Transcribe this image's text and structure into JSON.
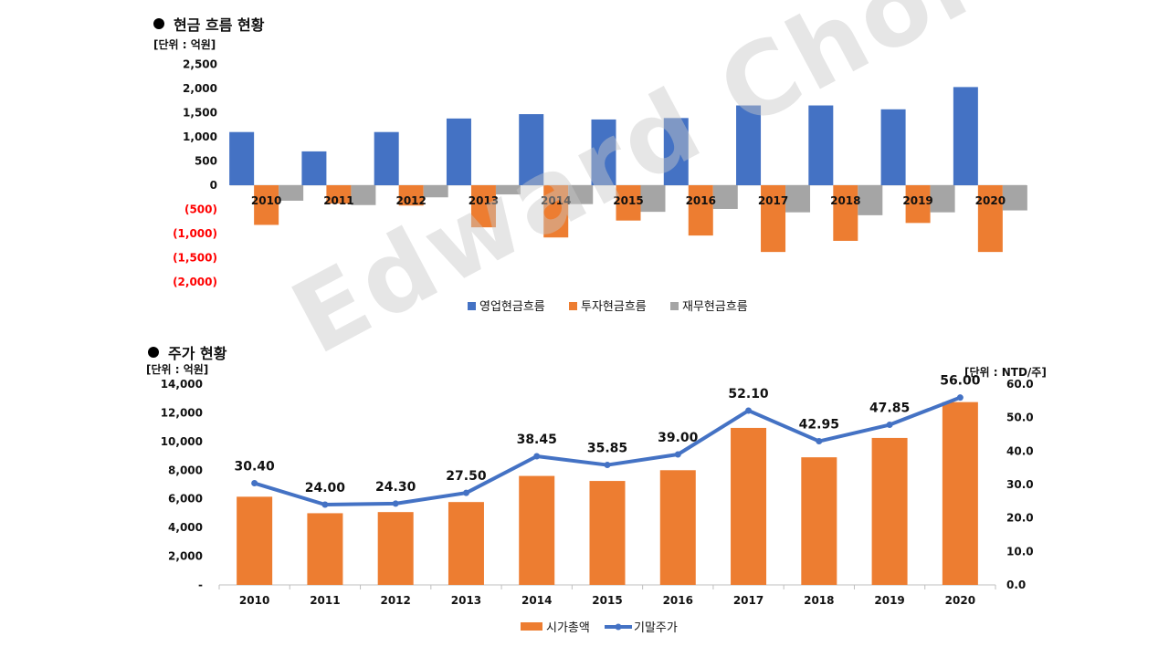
{
  "cashflow": {
    "title": "현금 흐름 현황",
    "unit": "[단위 : 억원]"
  },
  "stock": {
    "title": "주가 현황",
    "unit_left": "[단위 : 억원]",
    "unit_right": "[단위 : NTD/주]"
  },
  "watermark": "Edward Choi",
  "colors": {
    "blue": "#4472C4",
    "orange": "#ED7D31",
    "gray": "#A5A5A5",
    "negative": "#FF0000",
    "line": "#4472C4"
  },
  "chart_data": [
    {
      "type": "bar",
      "title": "현금 흐름 현황",
      "categories": [
        "2010",
        "2011",
        "2012",
        "2013",
        "2014",
        "2015",
        "2016",
        "2017",
        "2018",
        "2019",
        "2020"
      ],
      "series": [
        {
          "name": "영업현금흐름",
          "values": [
            1100,
            700,
            1100,
            1380,
            1470,
            1360,
            1390,
            1650,
            1650,
            1570,
            2030
          ]
        },
        {
          "name": "투자현금흐름",
          "values": [
            -820,
            -380,
            -420,
            -870,
            -1080,
            -730,
            -1040,
            -1380,
            -1150,
            -780,
            -1380
          ]
        },
        {
          "name": "재무현금흐름",
          "values": [
            -320,
            -410,
            -250,
            -190,
            -390,
            -550,
            -490,
            -560,
            -620,
            -560,
            -520
          ]
        }
      ],
      "yticks": [
        2500,
        2000,
        1500,
        1000,
        500,
        0,
        -500,
        -1000,
        -1500,
        -2000
      ],
      "ytick_labels": [
        "2,500",
        "2,000",
        "1,500",
        "1,000",
        "500",
        "0",
        "(500)",
        "(1,000)",
        "(1,500)",
        "(2,000)"
      ],
      "ylim": [
        -2000,
        2500
      ],
      "legend": "bottom"
    },
    {
      "type": "bar+line",
      "title": "주가 현황",
      "categories": [
        "2010",
        "2011",
        "2012",
        "2013",
        "2014",
        "2015",
        "2016",
        "2017",
        "2018",
        "2019",
        "2020"
      ],
      "series": [
        {
          "name": "시가총액",
          "type": "bar",
          "axis": "left",
          "values": [
            6150,
            5000,
            5080,
            5780,
            7600,
            7250,
            8000,
            10950,
            8900,
            10250,
            12750
          ]
        },
        {
          "name": "기말주가",
          "type": "line",
          "axis": "right",
          "values": [
            30.4,
            24.0,
            24.3,
            27.5,
            38.45,
            35.85,
            39.0,
            52.1,
            42.95,
            47.85,
            56.0
          ],
          "labels": [
            "30.40",
            "24.00",
            "24.30",
            "27.50",
            "38.45",
            "35.85",
            "39.00",
            "52.10",
            "42.95",
            "47.85",
            "56.00"
          ]
        }
      ],
      "yticks_left": [
        14000,
        12000,
        10000,
        8000,
        6000,
        4000,
        2000,
        0
      ],
      "ytick_labels_left": [
        "14,000",
        "12,000",
        "10,000",
        "8,000",
        "6,000",
        "4,000",
        "2,000",
        "-"
      ],
      "ylim_left": [
        0,
        14000
      ],
      "yticks_right": [
        60,
        50,
        40,
        30,
        20,
        10,
        0
      ],
      "ytick_labels_right": [
        "60.0",
        "50.0",
        "40.0",
        "30.0",
        "20.0",
        "10.0",
        "0.0"
      ],
      "ylim_right": [
        0,
        60
      ],
      "legend": "bottom"
    }
  ]
}
